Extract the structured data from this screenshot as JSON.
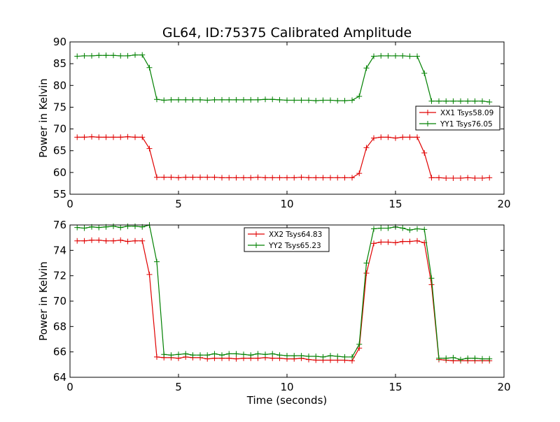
{
  "figure": {
    "title": "GL64, ID:75375 Calibrated Amplitude",
    "xlabel": "Time (seconds)"
  },
  "colors": {
    "red": "#e00000",
    "green": "#008000"
  },
  "chart_data": [
    {
      "type": "line",
      "ylabel": "Power in Kelvin",
      "xlim": [
        0,
        20
      ],
      "ylim": [
        55,
        90
      ],
      "xticks": [
        "0",
        "5",
        "10",
        "15",
        "20"
      ],
      "yticks": [
        "55",
        "60",
        "65",
        "70",
        "75",
        "80",
        "85",
        "90"
      ],
      "legend": "right",
      "x": [
        0.33,
        0.66,
        1.0,
        1.33,
        1.66,
        2.0,
        2.33,
        2.66,
        3.0,
        3.33,
        3.66,
        4.0,
        4.33,
        4.66,
        5.0,
        5.33,
        5.66,
        6.0,
        6.33,
        6.66,
        7.0,
        7.33,
        7.66,
        8.0,
        8.33,
        8.66,
        9.0,
        9.33,
        9.66,
        10.0,
        10.33,
        10.66,
        11.0,
        11.33,
        11.66,
        12.0,
        12.33,
        12.66,
        13.0,
        13.33,
        13.66,
        14.0,
        14.33,
        14.66,
        15.0,
        15.33,
        15.66,
        16.0,
        16.33,
        16.66,
        17.0,
        17.33,
        17.66,
        18.0,
        18.33,
        18.66,
        19.0,
        19.33
      ],
      "series": [
        {
          "name": "XX1 Tsys58.09",
          "color": "red",
          "values": [
            68.1,
            68.1,
            68.2,
            68.1,
            68.1,
            68.1,
            68.1,
            68.2,
            68.1,
            68.1,
            65.5,
            58.9,
            58.9,
            58.9,
            58.8,
            58.9,
            58.9,
            58.9,
            58.9,
            58.9,
            58.8,
            58.8,
            58.8,
            58.8,
            58.8,
            58.9,
            58.8,
            58.8,
            58.8,
            58.8,
            58.8,
            58.9,
            58.8,
            58.8,
            58.8,
            58.8,
            58.8,
            58.8,
            58.8,
            59.8,
            65.7,
            67.9,
            68.1,
            68.1,
            67.9,
            68.1,
            68.1,
            68.1,
            64.5,
            58.8,
            58.8,
            58.7,
            58.7,
            58.7,
            58.8,
            58.7,
            58.7,
            58.8
          ]
        },
        {
          "name": "YY1 Tsys76.05",
          "color": "green",
          "values": [
            86.7,
            86.8,
            86.8,
            86.9,
            86.9,
            86.9,
            86.8,
            86.8,
            87.0,
            87.0,
            84.1,
            76.8,
            76.6,
            76.7,
            76.7,
            76.7,
            76.7,
            76.7,
            76.6,
            76.7,
            76.7,
            76.7,
            76.7,
            76.7,
            76.7,
            76.7,
            76.8,
            76.8,
            76.7,
            76.6,
            76.6,
            76.6,
            76.6,
            76.5,
            76.6,
            76.6,
            76.5,
            76.5,
            76.6,
            77.5,
            84.0,
            86.7,
            86.8,
            86.8,
            86.8,
            86.8,
            86.7,
            86.7,
            82.8,
            76.4,
            76.4,
            76.4,
            76.4,
            76.4,
            76.4,
            76.4,
            76.4,
            76.2
          ]
        }
      ]
    },
    {
      "type": "line",
      "ylabel": "Power in Kelvin",
      "xlim": [
        0,
        20
      ],
      "ylim": [
        64,
        76
      ],
      "xticks": [
        "0",
        "5",
        "10",
        "15",
        "20"
      ],
      "yticks": [
        "64",
        "66",
        "68",
        "70",
        "72",
        "74",
        "76"
      ],
      "legend": "upper center",
      "x": [
        0.33,
        0.66,
        1.0,
        1.33,
        1.66,
        2.0,
        2.33,
        2.66,
        3.0,
        3.33,
        3.66,
        4.0,
        4.33,
        4.66,
        5.0,
        5.33,
        5.66,
        6.0,
        6.33,
        6.66,
        7.0,
        7.33,
        7.66,
        8.0,
        8.33,
        8.66,
        9.0,
        9.33,
        9.66,
        10.0,
        10.33,
        10.66,
        11.0,
        11.33,
        11.66,
        12.0,
        12.33,
        12.66,
        13.0,
        13.33,
        13.66,
        14.0,
        14.33,
        14.66,
        15.0,
        15.33,
        15.66,
        16.0,
        16.33,
        16.66,
        17.0,
        17.33,
        17.66,
        18.0,
        18.33,
        18.66,
        19.0,
        19.33
      ],
      "series": [
        {
          "name": "XX2 Tsys64.83",
          "color": "red",
          "values": [
            74.75,
            74.75,
            74.8,
            74.8,
            74.75,
            74.75,
            74.8,
            74.7,
            74.75,
            74.75,
            72.1,
            65.6,
            65.55,
            65.55,
            65.5,
            65.6,
            65.55,
            65.55,
            65.45,
            65.5,
            65.5,
            65.5,
            65.45,
            65.5,
            65.5,
            65.5,
            65.55,
            65.5,
            65.5,
            65.45,
            65.45,
            65.5,
            65.4,
            65.35,
            65.35,
            65.35,
            65.35,
            65.35,
            65.3,
            66.3,
            72.2,
            74.55,
            74.65,
            74.65,
            74.6,
            74.7,
            74.7,
            74.75,
            74.6,
            71.3,
            65.4,
            65.35,
            65.3,
            65.3,
            65.3,
            65.3,
            65.3,
            65.3
          ]
        },
        {
          "name": "YY2 Tsys65.23",
          "color": "green",
          "values": [
            75.8,
            75.75,
            75.85,
            75.8,
            75.85,
            75.9,
            75.8,
            75.9,
            75.9,
            75.85,
            76.0,
            73.1,
            65.8,
            65.75,
            65.8,
            65.85,
            65.75,
            65.75,
            65.75,
            65.85,
            65.75,
            65.85,
            65.85,
            65.8,
            65.75,
            65.85,
            65.8,
            65.85,
            65.75,
            65.7,
            65.7,
            65.7,
            65.65,
            65.65,
            65.6,
            65.7,
            65.65,
            65.6,
            65.6,
            66.6,
            73.0,
            75.7,
            75.75,
            75.75,
            75.85,
            75.75,
            75.6,
            75.7,
            75.65,
            71.8,
            65.5,
            65.5,
            65.55,
            65.4,
            65.5,
            65.5,
            65.45,
            65.45
          ]
        }
      ]
    }
  ]
}
